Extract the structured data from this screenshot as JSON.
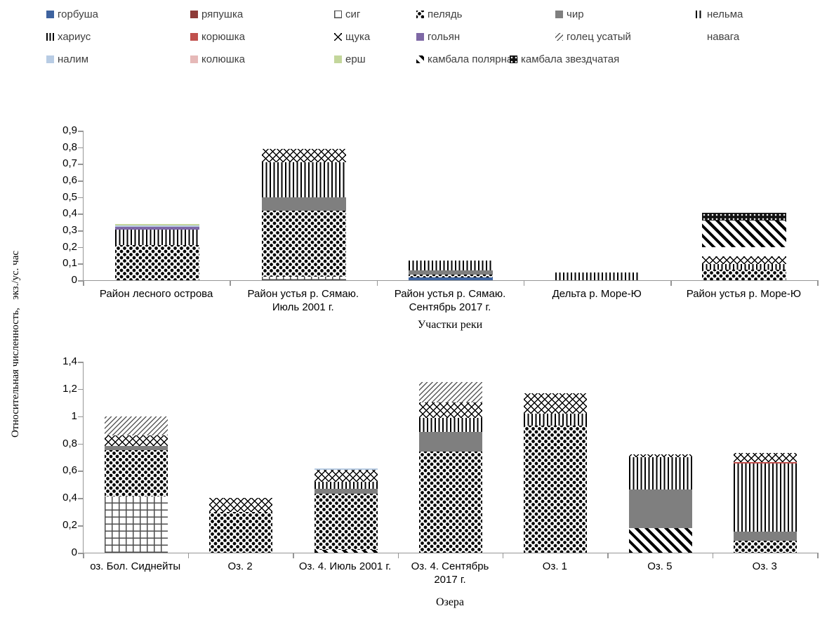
{
  "y_axis_title": "Относительная численность,   экз./ус. час",
  "species": {
    "gorbusha": {
      "label": "горбуша",
      "pattern": "solid",
      "color": "#3E639F"
    },
    "ryapushka": {
      "label": "ряпушка",
      "pattern": "solid",
      "color": "#8E3B38"
    },
    "sig": {
      "label": "сиг",
      "pattern": "grid"
    },
    "pelyad": {
      "label": "пелядь",
      "pattern": "dots"
    },
    "chir": {
      "label": "чир",
      "pattern": "gray"
    },
    "nelma": {
      "label": "нельма",
      "pattern": "vlines"
    },
    "kharius": {
      "label": "хариус",
      "pattern": "vbars"
    },
    "koryushka": {
      "label": "корюшка",
      "pattern": "solid",
      "color": "#C0504D"
    },
    "shchuka": {
      "label": "щука",
      "pattern": "crosshatch"
    },
    "golyan": {
      "label": "гольян",
      "pattern": "solid",
      "color": "#7E68A5"
    },
    "golets": {
      "label": "голец усатый",
      "pattern": "finediag"
    },
    "navaga": {
      "label": "навага",
      "pattern": "none"
    },
    "nalim": {
      "label": "налим",
      "pattern": "solid",
      "color": "#B8CCE4"
    },
    "kolyushka": {
      "label": "колюшка",
      "pattern": "solid",
      "color": "#E6B9B8"
    },
    "yorsh": {
      "label": "ерш",
      "pattern": "solid",
      "color": "#C3D69B"
    },
    "kambala_polar": {
      "label": "камбала полярная",
      "pattern": "diag"
    },
    "kambala_zvezd": {
      "label": "камбала звездчатая",
      "pattern": "blackdots"
    }
  },
  "legend_rows": [
    [
      "gorbusha",
      "ryapushka",
      "sig",
      "pelyad",
      "chir",
      "nelma"
    ],
    [
      "kharius",
      "koryushka",
      "shchuka",
      "golyan",
      "golets",
      "navaga"
    ],
    [
      "nalim",
      "kolyushka",
      "yorsh",
      "kambala_polar",
      "kambala_zvezd"
    ]
  ],
  "chart_data": [
    {
      "type": "bar",
      "stacked": true,
      "xlabel": "Участки реки",
      "ylabel": "Относительная численность, экз./ус. час",
      "ylim": [
        0,
        0.9
      ],
      "grid": false,
      "yticks": [
        {
          "v": 0,
          "label": "0"
        },
        {
          "v": 0.1,
          "label": "0,1"
        },
        {
          "v": 0.2,
          "label": "0,2"
        },
        {
          "v": 0.3,
          "label": "0,3"
        },
        {
          "v": 0.4,
          "label": "0,4"
        },
        {
          "v": 0.5,
          "label": "0,5"
        },
        {
          "v": 0.6,
          "label": "0,6"
        },
        {
          "v": 0.7,
          "label": "0,7"
        },
        {
          "v": 0.8,
          "label": "0,8"
        },
        {
          "v": 0.9,
          "label": "0,9"
        }
      ],
      "bars": [
        {
          "category": "Район лесного острова",
          "segments": [
            [
              "pelyad",
              0.21
            ],
            [
              "nelma",
              0.095
            ],
            [
              "golyan",
              0.015
            ],
            [
              "nalim",
              0.008
            ],
            [
              "yorsh",
              0.008
            ]
          ]
        },
        {
          "category": "Район устья р. Сямаю.\nИюль 2001 г.",
          "segments": [
            [
              "sig",
              0.02
            ],
            [
              "pelyad",
              0.4
            ],
            [
              "chir",
              0.08
            ],
            [
              "nelma",
              0.21
            ],
            [
              "shchuka",
              0.08
            ]
          ]
        },
        {
          "category": "Район устья р. Сямаю.\nСентябрь 2017 г.",
          "segments": [
            [
              "gorbusha",
              0.015
            ],
            [
              "pelyad",
              0.02
            ],
            [
              "chir",
              0.025
            ],
            [
              "nelma",
              0.06
            ]
          ]
        },
        {
          "category": "Дельта р. Море-Ю",
          "segments": [
            [
              "nelma",
              0.045
            ]
          ]
        },
        {
          "category": "Район устья р. Море-Ю",
          "segments": [
            [
              "pelyad",
              0.065
            ],
            [
              "nelma",
              0.033
            ],
            [
              "shchuka",
              0.047
            ],
            [
              "navaga",
              0.052
            ],
            [
              "kambala_polar",
              0.163
            ],
            [
              "kambala_zvezd",
              0.045
            ]
          ]
        }
      ]
    },
    {
      "type": "bar",
      "stacked": true,
      "xlabel": "Озера",
      "ylabel": "Относительная численность, экз./ус. час",
      "ylim": [
        0,
        1.4
      ],
      "grid": false,
      "yticks": [
        {
          "v": 0,
          "label": "0"
        },
        {
          "v": 0.2,
          "label": "0,2"
        },
        {
          "v": 0.4,
          "label": "0,4"
        },
        {
          "v": 0.6,
          "label": "0,6"
        },
        {
          "v": 0.8,
          "label": "0,8"
        },
        {
          "v": 1,
          "label": "1"
        },
        {
          "v": 1.2,
          "label": "1,2"
        },
        {
          "v": 1.4,
          "label": "1,4"
        }
      ],
      "bars": [
        {
          "category": "оз. Бол. Сиднейты",
          "segments": [
            [
              "sig",
              0.41
            ],
            [
              "pelyad",
              0.34
            ],
            [
              "chir",
              0.03
            ],
            [
              "shchuka",
              0.08
            ],
            [
              "golets",
              0.14
            ]
          ]
        },
        {
          "category": "Оз. 2",
          "segments": [
            [
              "pelyad",
              0.3
            ],
            [
              "shchuka",
              0.1
            ]
          ]
        },
        {
          "category": "Оз. 4. Июль 2001 г.",
          "segments": [
            [
              "kambala_polar",
              0.02
            ],
            [
              "pelyad",
              0.41
            ],
            [
              "chir",
              0.04
            ],
            [
              "nelma",
              0.05
            ],
            [
              "shchuka",
              0.09
            ],
            [
              "nalim",
              0.01
            ]
          ]
        },
        {
          "category": "Оз. 4. Сентябрь\n2017 г.",
          "segments": [
            [
              "pelyad",
              0.74
            ],
            [
              "chir",
              0.145
            ],
            [
              "nelma",
              0.105
            ],
            [
              "shchuka",
              0.11
            ],
            [
              "golets",
              0.15
            ],
            [
              "navaga",
              0.03
            ]
          ]
        },
        {
          "category": "Оз. 1",
          "segments": [
            [
              "pelyad",
              0.93
            ],
            [
              "nelma",
              0.09
            ],
            [
              "shchuka",
              0.15
            ],
            [
              "navaga",
              0.03
            ]
          ]
        },
        {
          "category": "Оз. 5",
          "segments": [
            [
              "kambala_polar",
              0.18
            ],
            [
              "chir",
              0.285
            ],
            [
              "nelma",
              0.235
            ],
            [
              "shchuka",
              0.02
            ]
          ]
        },
        {
          "category": "Оз. 3",
          "segments": [
            [
              "pelyad",
              0.09
            ],
            [
              "chir",
              0.065
            ],
            [
              "nelma",
              0.5
            ],
            [
              "koryushka",
              0.01
            ],
            [
              "shchuka",
              0.065
            ]
          ]
        }
      ]
    }
  ]
}
